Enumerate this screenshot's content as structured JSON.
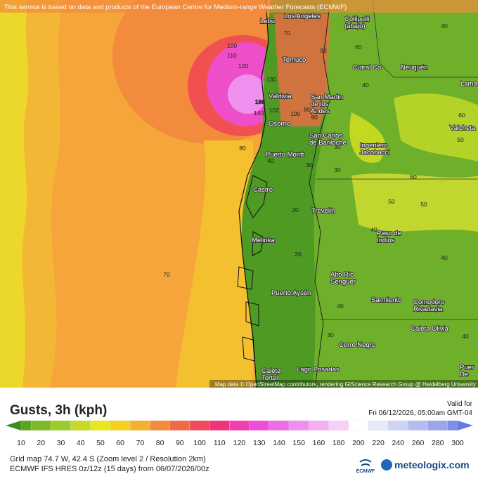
{
  "notice": "This service is based on data and products of the European Centre for Medium-range Weather Forecasts (ECMWF)",
  "attribution": "Map data © OpenStreetMap contributors, rendering GIScience Research Group @ Heidelberg University",
  "cities": [
    {
      "lines": [
        "Los Angeles"
      ]
    },
    {
      "lines": [
        "Lebu"
      ]
    },
    {
      "lines": [
        "Collipulli",
        "(abajo)"
      ]
    },
    {
      "lines": [
        "Temuco"
      ]
    },
    {
      "lines": [
        "Cutral Co"
      ]
    },
    {
      "lines": [
        "Neuquén"
      ]
    },
    {
      "lines": [
        "Lama"
      ]
    },
    {
      "lines": [
        "Valdivia"
      ]
    },
    {
      "lines": [
        "San Martin",
        "de los",
        "Andes"
      ]
    },
    {
      "lines": [
        "Osorno"
      ]
    },
    {
      "lines": [
        "Valcheta"
      ]
    },
    {
      "lines": [
        "San Carlos",
        "de Bariloche"
      ]
    },
    {
      "lines": [
        "Ingeniero",
        "Jacobacci"
      ]
    },
    {
      "lines": [
        "Puerto Montt"
      ]
    },
    {
      "lines": [
        "Castro"
      ]
    },
    {
      "lines": [
        "Trevelin"
      ]
    },
    {
      "lines": [
        "Paso de",
        "Indios"
      ]
    },
    {
      "lines": [
        "Melinka"
      ]
    },
    {
      "lines": [
        "Alto Rio",
        "Senguer"
      ]
    },
    {
      "lines": [
        "Puerto Aysén"
      ]
    },
    {
      "lines": [
        "Sarmiento"
      ]
    },
    {
      "lines": [
        "Comodoro",
        "Rivadavia"
      ]
    },
    {
      "lines": [
        "Caleta Olivia"
      ]
    },
    {
      "lines": [
        "Cerro Negro"
      ]
    },
    {
      "lines": [
        "Caleta",
        "Tortel"
      ]
    },
    {
      "lines": [
        "Lago Posadas"
      ]
    },
    {
      "lines": [
        "Puer",
        "De"
      ]
    }
  ],
  "contours": [
    100,
    110,
    120,
    130,
    166,
    140,
    102,
    80,
    70,
    90,
    80,
    100,
    90,
    60,
    40,
    40,
    30,
    40,
    30,
    20,
    20,
    30,
    50,
    50,
    60,
    40,
    40,
    40,
    30,
    20,
    70,
    40,
    60,
    50
  ],
  "legend": {
    "title": "Gusts, 3h (kph)",
    "valid_label": "Valid for",
    "valid_time": "Fri 06/12/2026, 05:00am GMT-04",
    "ticks": [
      10,
      20,
      30,
      40,
      50,
      60,
      70,
      80,
      90,
      100,
      110,
      120,
      130,
      140,
      150,
      160,
      180,
      200,
      220,
      240,
      260,
      280,
      300
    ],
    "colors": [
      "#5aa520",
      "#7cb82a",
      "#9ccc2c",
      "#c4dc28",
      "#e8e81e",
      "#f5d020",
      "#f5b02c",
      "#f28c3c",
      "#f06a46",
      "#f04a5a",
      "#f0347a",
      "#f040b0",
      "#ee4ed8",
      "#ee6ee6",
      "#f090ee",
      "#f4b0f2",
      "#f8d0f6",
      "#ffffff",
      "#e6eaf8",
      "#cdd3f2",
      "#b4bdee",
      "#9aa6ea",
      "#7f8ee6"
    ]
  },
  "footer": {
    "grid": "Grid map 74.7 W, 42.4 S (Zoom level 2 / Resolution 2km)",
    "model": "ECMWF IFS HRES 0z/12z (15 days) from 06/07/2026/00z",
    "ecmwf": "ECMWF",
    "brand": "meteologix.com"
  }
}
